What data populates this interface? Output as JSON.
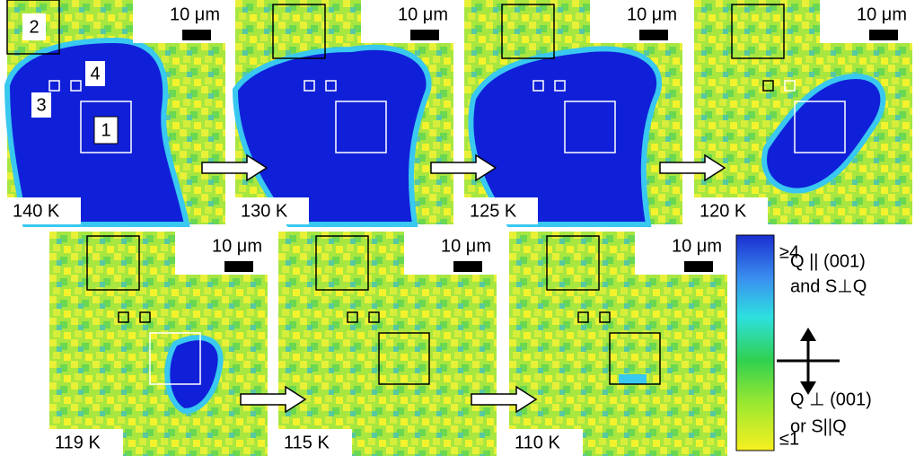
{
  "panels": [
    {
      "temperature": "140 K",
      "scale": "10 μm"
    },
    {
      "temperature": "130 K",
      "scale": "10 μm"
    },
    {
      "temperature": "125 K",
      "scale": "10 μm"
    },
    {
      "temperature": "120 K",
      "scale": "10 μm"
    },
    {
      "temperature": "119 K",
      "scale": "10 μm"
    },
    {
      "temperature": "115 K",
      "scale": "10 μm"
    },
    {
      "temperature": "110 K",
      "scale": "10 μm"
    }
  ],
  "region_labels": [
    "1",
    "2",
    "3",
    "4"
  ],
  "colorbar": {
    "max_label": "≥4",
    "min_label": "≤1"
  },
  "legend": {
    "parallel": {
      "line1": "Q || (001)",
      "line2": "and S⊥Q"
    },
    "perpendicular": {
      "line1": "Q ⊥ (001)",
      "line2": "or S||Q"
    }
  }
}
